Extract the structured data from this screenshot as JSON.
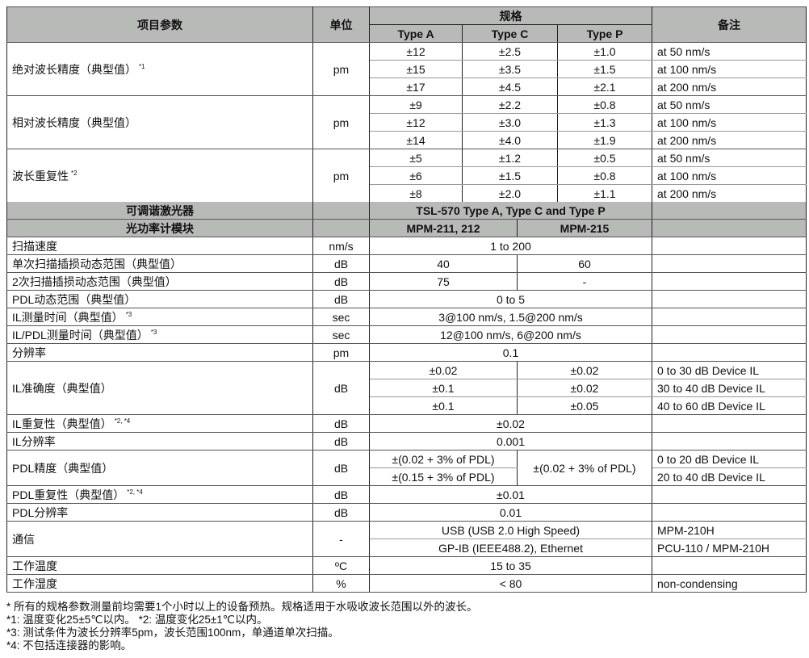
{
  "header": {
    "param": "项目参数",
    "unit": "单位",
    "spec": "规格",
    "types": [
      "Type A",
      "Type C",
      "Type P"
    ],
    "notes": "备注"
  },
  "upper": [
    {
      "param": "绝对波长精度（典型值）",
      "sup": "*1",
      "unit": "pm",
      "rows": [
        [
          "±12",
          "±2.5",
          "±1.0",
          "at 50 nm/s"
        ],
        [
          "±15",
          "±3.5",
          "±1.5",
          "at 100 nm/s"
        ],
        [
          "±17",
          "±4.5",
          "±2.1",
          "at 200 nm/s"
        ]
      ]
    },
    {
      "param": "相对波长精度（典型值）",
      "sup": "",
      "unit": "pm",
      "rows": [
        [
          "±9",
          "±2.2",
          "±0.8",
          "at 50 nm/s"
        ],
        [
          "±12",
          "±3.0",
          "±1.3",
          "at 100 nm/s"
        ],
        [
          "±14",
          "±4.0",
          "±1.9",
          "at 200 nm/s"
        ]
      ]
    },
    {
      "param": "波长重复性",
      "sup": "*2",
      "unit": "pm",
      "rows": [
        [
          "±5",
          "±1.2",
          "±0.5",
          "at 50 nm/s"
        ],
        [
          "±6",
          "±1.5",
          "±0.8",
          "at 100 nm/s"
        ],
        [
          "±8",
          "±2.0",
          "±1.1",
          "at 200 nm/s"
        ]
      ]
    }
  ],
  "lower": {
    "laser": {
      "label": "可调谐激光器",
      "value": "TSL-570 Type A, Type C and Type P"
    },
    "meter": {
      "label": "光功率计模块",
      "models": [
        "MPM-211, 212",
        "MPM-215"
      ]
    },
    "scan_speed": {
      "param": "扫描速度",
      "unit": "nm/s",
      "value": "1 to 200"
    },
    "single_range": {
      "param": "单次扫描插损动态范围（典型值）",
      "unit": "dB",
      "values": [
        "40",
        "60"
      ]
    },
    "double_range": {
      "param": "2次扫描插损动态范围（典型值）",
      "unit": "dB",
      "values": [
        "75",
        "-"
      ]
    },
    "pdl_range": {
      "param": "PDL动态范围（典型值）",
      "unit": "dB",
      "value": "0 to 5"
    },
    "il_time": {
      "param": "IL测量时间（典型值）",
      "sup": "*3",
      "unit": "sec",
      "value": "3@100 nm/s, 1.5@200 nm/s"
    },
    "ilpdl_time": {
      "param": "IL/PDL测量时间（典型值）",
      "sup": "*3",
      "unit": "sec",
      "value": "12@100 nm/s, 6@200 nm/s"
    },
    "resolution": {
      "param": "分辨率",
      "unit": "pm",
      "value": "0.1"
    },
    "il_accuracy": {
      "param": "IL准确度（典型值）",
      "unit": "dB",
      "rows": [
        [
          "±0.02",
          "±0.02",
          "0 to 30 dB Device IL"
        ],
        [
          "±0.1",
          "±0.02",
          "30 to 40 dB Device IL"
        ],
        [
          "±0.1",
          "±0.05",
          "40 to 60 dB Device IL"
        ]
      ]
    },
    "il_repeat": {
      "param": "IL重复性（典型值）",
      "sup": "*2, *4",
      "unit": "dB",
      "value": "±0.02"
    },
    "il_res": {
      "param": "IL分辨率",
      "unit": "dB",
      "value": "0.001"
    },
    "pdl_accuracy": {
      "param": "PDL精度（典型值）",
      "unit": "dB",
      "col1": [
        "±(0.02 + 3% of PDL)",
        "±(0.15 + 3% of PDL)"
      ],
      "col2": "±(0.02 + 3% of PDL)",
      "notes": [
        "0 to 20 dB Device IL",
        "20 to 40 dB Device IL"
      ]
    },
    "pdl_repeat": {
      "param": "PDL重复性（典型值）",
      "sup": "*2, *4",
      "unit": "dB",
      "value": "±0.01"
    },
    "pdl_res": {
      "param": "PDL分辨率",
      "unit": "dB",
      "value": "0.01"
    },
    "comm": {
      "param": "通信",
      "unit": "-",
      "rows": [
        [
          "USB (USB 2.0 High Speed)",
          "MPM-210H"
        ],
        [
          "GP-IB (IEEE488.2), Ethernet",
          "PCU-110 / MPM-210H"
        ]
      ]
    },
    "temp": {
      "param": "工作温度",
      "unit": "ºC",
      "value": "15 to 35"
    },
    "humidity": {
      "param": "工作湿度",
      "unit": "%",
      "value": "< 80",
      "notes": "non-condensing"
    }
  },
  "footnotes": [
    "* 所有的规格参数测量前均需要1个小时以上的设备预热。规格适用于水吸收波长范围以外的波长。",
    "*1: 温度变化25±5℃以内。 *2: 温度变化25±1℃以内。",
    "*3: 测试条件为波长分辨率5pm，波长范围100nm，单通道单次扫描。",
    "*4: 不包括连接器的影响。"
  ]
}
